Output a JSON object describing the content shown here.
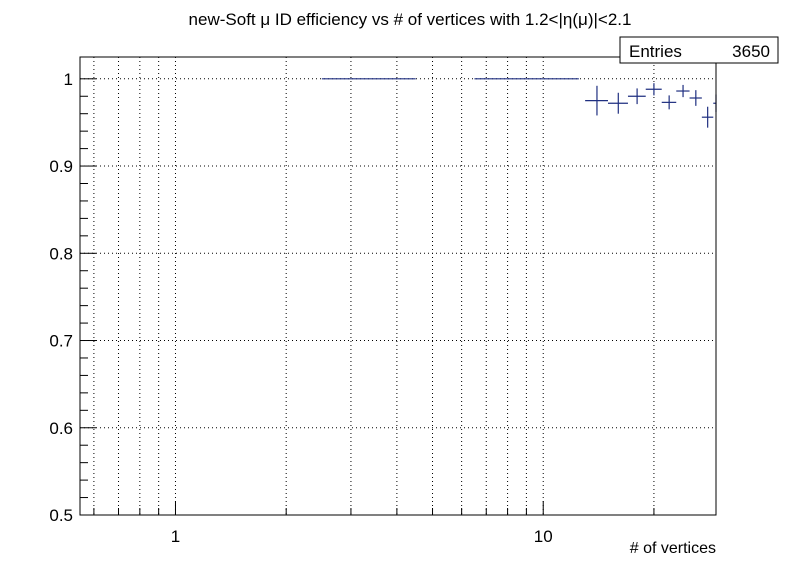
{
  "chart_data": {
    "type": "scatter",
    "title": "new-Soft μ ID efficiency vs # of vertices with 1.2<|η(μ)|<2.1",
    "xlabel": "# of vertices",
    "ylabel": "",
    "x_scale": "log",
    "xlim": [
      0.55,
      29.5
    ],
    "ylim": [
      0.5,
      1.025
    ],
    "grid": true,
    "x_tick_labels": [
      "1",
      "10"
    ],
    "y_tick_labels": [
      "0.5",
      "0.6",
      "0.7",
      "0.8",
      "0.9",
      "1"
    ],
    "series_color": "#1f2f80",
    "stats_box": {
      "label": "Entries",
      "value": "3650",
      "position": "top-right"
    },
    "points": [
      {
        "x": 3.5,
        "xlow": 2.5,
        "xhigh": 4.5,
        "y": 1.0,
        "ylow": 1.0,
        "yhigh": 1.0
      },
      {
        "x": 9.5,
        "xlow": 6.5,
        "xhigh": 12.5,
        "y": 1.0,
        "ylow": 1.0,
        "yhigh": 1.0
      },
      {
        "x": 14,
        "xlow": 13,
        "xhigh": 15,
        "y": 0.975,
        "ylow": 0.958,
        "yhigh": 0.992
      },
      {
        "x": 16,
        "xlow": 15,
        "xhigh": 17,
        "y": 0.972,
        "ylow": 0.96,
        "yhigh": 0.984
      },
      {
        "x": 18,
        "xlow": 17,
        "xhigh": 19,
        "y": 0.98,
        "ylow": 0.971,
        "yhigh": 0.989
      },
      {
        "x": 20,
        "xlow": 19,
        "xhigh": 21,
        "y": 0.988,
        "ylow": 0.981,
        "yhigh": 0.995
      },
      {
        "x": 22,
        "xlow": 21,
        "xhigh": 23,
        "y": 0.973,
        "ylow": 0.965,
        "yhigh": 0.981
      },
      {
        "x": 24,
        "xlow": 23,
        "xhigh": 25,
        "y": 0.986,
        "ylow": 0.979,
        "yhigh": 0.993
      },
      {
        "x": 26,
        "xlow": 25,
        "xhigh": 27,
        "y": 0.978,
        "ylow": 0.969,
        "yhigh": 0.987
      },
      {
        "x": 28,
        "xlow": 27,
        "xhigh": 29,
        "y": 0.956,
        "ylow": 0.944,
        "yhigh": 0.968
      },
      {
        "x": 29.5,
        "xlow": 29,
        "xhigh": 30,
        "y": 0.972,
        "ylow": 0.962,
        "yhigh": 0.982
      }
    ]
  }
}
